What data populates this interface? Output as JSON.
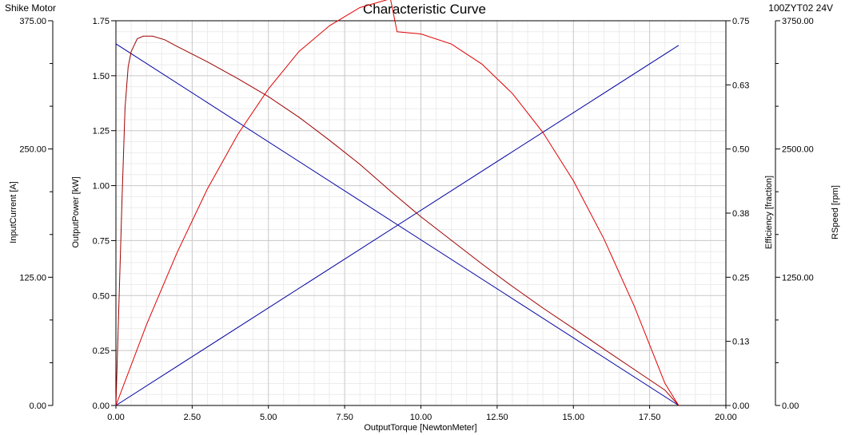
{
  "header": {
    "company": "Shike Motor",
    "title": "Characteristic Curve",
    "model": "100ZYT02 24V"
  },
  "chart_data": {
    "type": "line",
    "title": "Characteristic Curve",
    "xlabel": "OutputTorque [NewtonMeter]",
    "xlim": [
      0,
      20
    ],
    "x_ticks": [
      "0.00",
      "2.50",
      "5.00",
      "7.50",
      "10.00",
      "12.50",
      "15.00",
      "17.50",
      "20.00"
    ],
    "grid": true,
    "axes": {
      "current": {
        "label": "InputCurrent [A]",
        "range": [
          0,
          375
        ],
        "ticks": [
          "0.00",
          "125.00",
          "250.00",
          "375.00"
        ]
      },
      "power": {
        "label": "OutputPower [kW]",
        "range": [
          0,
          1.75
        ],
        "ticks": [
          "0.00",
          "0.25",
          "0.50",
          "0.75",
          "1.00",
          "1.25",
          "1.50",
          "1.75"
        ]
      },
      "efficiency": {
        "label": "Efficiency [fraction]",
        "range": [
          0,
          0.75
        ],
        "ticks": [
          "0.00",
          "0.13",
          "0.25",
          "0.38",
          "0.50",
          "0.63",
          "0.75"
        ]
      },
      "speed": {
        "label": "RSpeed [rpm]",
        "range": [
          0,
          3750
        ],
        "ticks": [
          "0.00",
          "1250.00",
          "2500.00",
          "3750.00"
        ]
      }
    },
    "series": [
      {
        "axis": "current",
        "color": "#0000a0",
        "x": [
          0,
          18.45
        ],
        "y": [
          0,
          351
        ]
      },
      {
        "axis": "speed",
        "color": "#0000a0",
        "x": [
          0,
          18.45
        ],
        "y": [
          3525,
          0
        ]
      },
      {
        "axis": "power",
        "color": "#e00000",
        "x": [
          0,
          1.0,
          2.0,
          3.0,
          4.0,
          5.0,
          6.0,
          7.0,
          8.0,
          9.0,
          9.22,
          10.0,
          11.0,
          12.0,
          13.0,
          14.0,
          15.0,
          16.0,
          17.0,
          18.0,
          18.45
        ],
        "y": [
          0,
          0.367,
          0.694,
          0.985,
          1.234,
          1.44,
          1.61,
          1.727,
          1.81,
          1.85,
          1.7,
          1.69,
          1.644,
          1.553,
          1.419,
          1.242,
          1.022,
          0.758,
          0.451,
          0.101,
          0
        ]
      },
      {
        "axis": "efficiency",
        "color": "#a00000",
        "x": [
          0,
          0.1,
          0.2,
          0.3,
          0.4,
          0.5,
          0.7,
          0.9,
          1.2,
          1.6,
          2.0,
          3.0,
          4.0,
          5.0,
          6.0,
          7.0,
          8.0,
          9.0,
          10.0,
          11.0,
          12.0,
          13.0,
          14.0,
          15.0,
          16.0,
          17.0,
          18.0,
          18.45
        ],
        "y": [
          0,
          0.2,
          0.4,
          0.58,
          0.66,
          0.69,
          0.715,
          0.72,
          0.72,
          0.713,
          0.7,
          0.67,
          0.637,
          0.602,
          0.562,
          0.517,
          0.47,
          0.418,
          0.368,
          0.322,
          0.276,
          0.232,
          0.19,
          0.15,
          0.11,
          0.07,
          0.03,
          0
        ]
      }
    ]
  }
}
